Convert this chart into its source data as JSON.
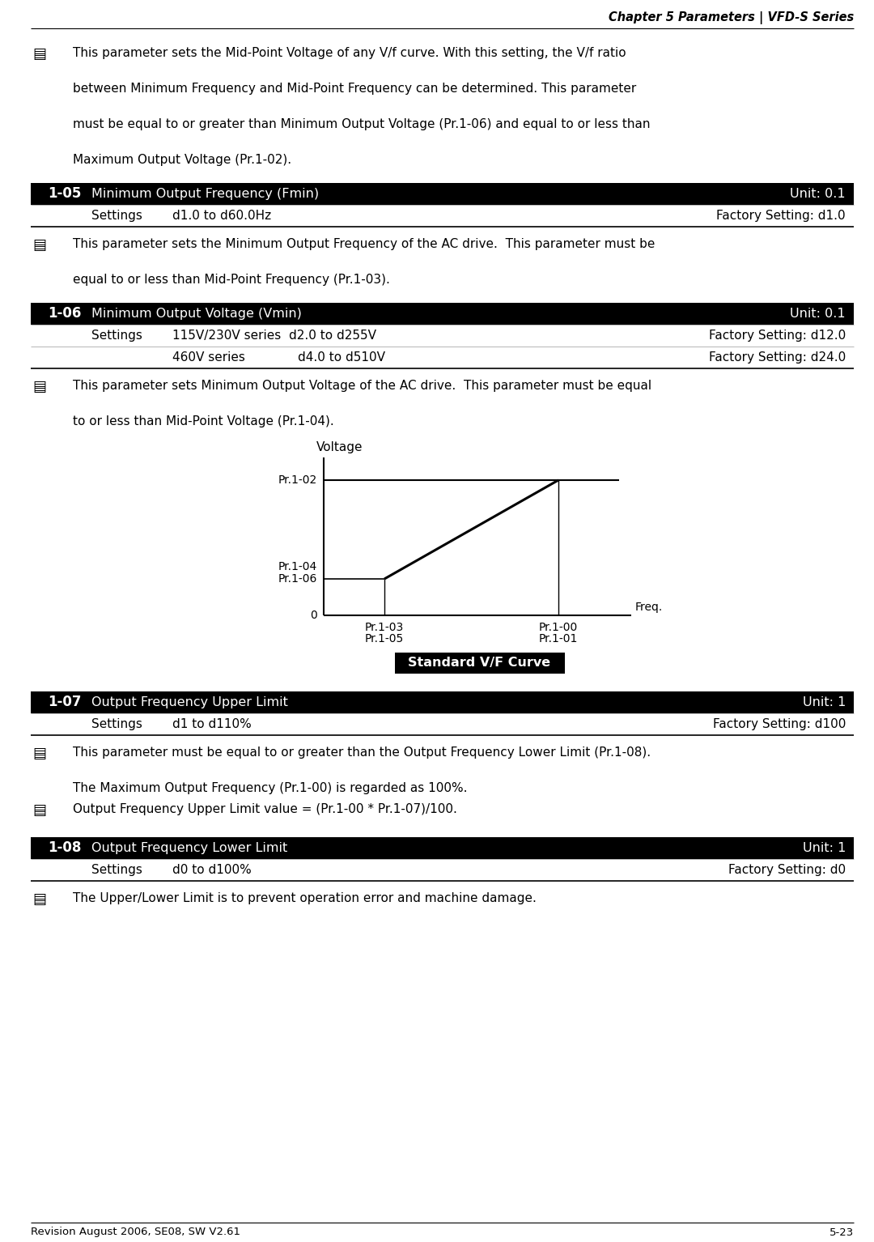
{
  "page_header": "Chapter 5 Parameters | VFD-S Series",
  "bg_color": "#ffffff",
  "footer_left": "Revision August 2006, SE08, SW V2.61",
  "footer_right": "5-23",
  "intro_lines": [
    "This parameter sets the Mid-Point Voltage of any V/f curve. With this setting, the V/f ratio",
    "",
    "between Minimum Frequency and Mid-Point Frequency can be determined. This parameter",
    "",
    "must be equal to or greater than Minimum Output Voltage (Pr.1-06) and equal to or less than",
    "",
    "Maximum Output Voltage (Pr.1-02)."
  ],
  "sec105_title": "Minimum Output Frequency (Fmin)",
  "sec105_unit": "Unit: 0.1",
  "sec105_set_label": "Settings",
  "sec105_set_range": "d1.0 to d60.0Hz",
  "sec105_set_factory": "Factory Setting: d1.0",
  "sec105_notes": [
    "This parameter sets the Minimum Output Frequency of the AC drive.  This parameter must be",
    "",
    "equal to or less than Mid-Point Frequency (Pr.1-03)."
  ],
  "sec106_title": "Minimum Output Voltage (Vmin)",
  "sec106_unit": "Unit: 0.1",
  "sec106_set_label": "Settings",
  "sec106_set_range1": "115V/230V series  d2.0 to d255V",
  "sec106_set_factory1": "Factory Setting: d12.0",
  "sec106_set_range2a": "460V series",
  "sec106_set_range2b": "d4.0 to d510V",
  "sec106_set_factory2": "Factory Setting: d24.0",
  "sec106_notes": [
    "This parameter sets Minimum Output Voltage of the AC drive.  This parameter must be equal",
    "",
    "to or less than Mid-Point Voltage (Pr.1-04)."
  ],
  "chart_voltage_label": "Voltage",
  "chart_freq_label": "Freq.",
  "chart_y1": "Pr.1-02",
  "chart_y2": "Pr.1-04",
  "chart_y3": "Pr.1-06",
  "chart_zero": "0",
  "chart_x1a": "Pr.1-03",
  "chart_x1b": "Pr.1-05",
  "chart_x2a": "Pr.1-00",
  "chart_x2b": "Pr.1-01",
  "chart_box_label": "Standard V/F Curve",
  "sec107_title": "Output Frequency Upper Limit",
  "sec107_unit": "Unit: 1",
  "sec107_set_label": "Settings",
  "sec107_set_range": "d1 to d110%",
  "sec107_set_factory": "Factory Setting: d100",
  "sec107_note1_lines": [
    "This parameter must be equal to or greater than the Output Frequency Lower Limit (Pr.1-08).",
    "",
    "The Maximum Output Frequency (Pr.1-00) is regarded as 100%."
  ],
  "sec107_note2": "Output Frequency Upper Limit value = (Pr.1-00 * Pr.1-07)/100.",
  "sec108_title": "Output Frequency Lower Limit",
  "sec108_unit": "Unit: 1",
  "sec108_set_label": "Settings",
  "sec108_set_range": "d0 to d100%",
  "sec108_set_factory": "Factory Setting: d0",
  "sec108_note": "The Upper/Lower Limit is to prevent operation error and machine damage."
}
